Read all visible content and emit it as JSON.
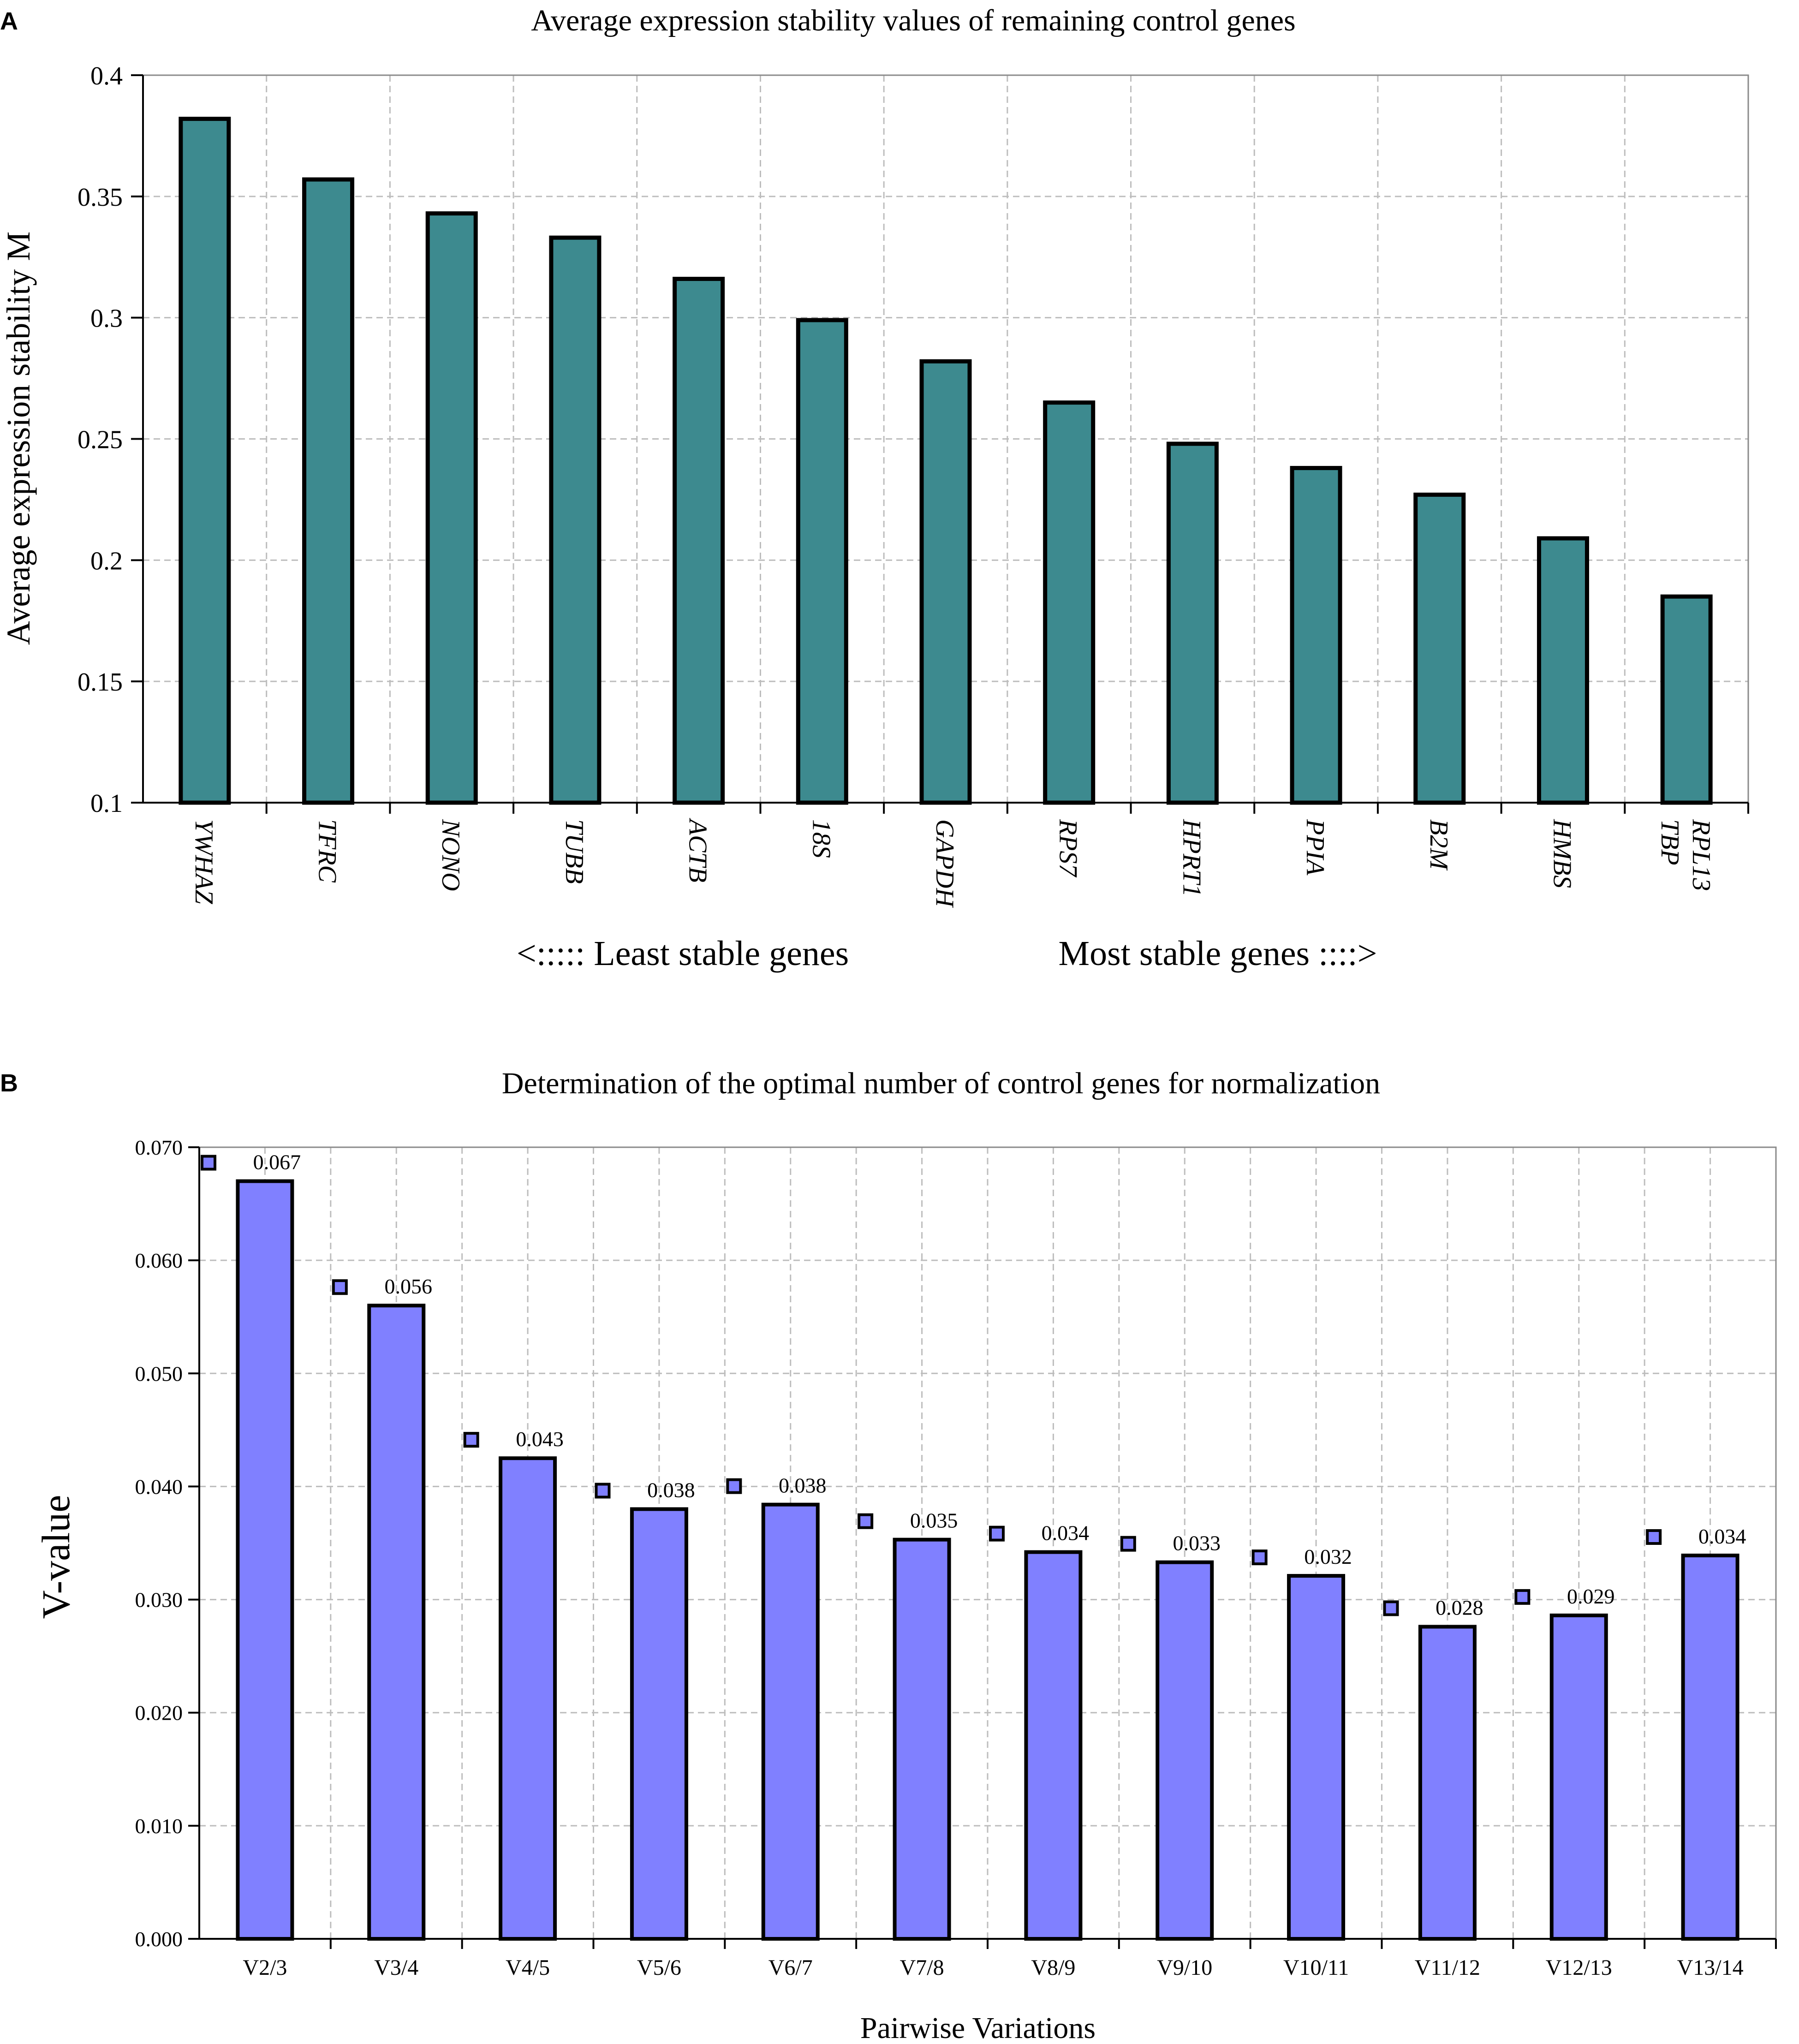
{
  "chart_data": [
    {
      "panel": "A",
      "type": "bar",
      "title": "Average expression stability values of remaining control genes",
      "xlabel": "",
      "ylabel": "Average expression stability M",
      "ylim": [
        0.1,
        0.4
      ],
      "yticks": [
        "0.1",
        "0.15",
        "0.2",
        "0.25",
        "0.3",
        "0.35",
        "0.4"
      ],
      "categories": [
        "YWHAZ",
        "TFRC",
        "NONO",
        "TUBB",
        "ACTB",
        "18S",
        "GAPDH",
        "RPS7",
        "HPRT1",
        "PPIA",
        "B2M",
        "HMBS",
        "TBP RPL13"
      ],
      "category_lines": [
        [
          "YWHAZ"
        ],
        [
          "TFRC"
        ],
        [
          "NONO"
        ],
        [
          "TUBB"
        ],
        [
          "ACTB"
        ],
        [
          "18S"
        ],
        [
          "GAPDH"
        ],
        [
          "RPS7"
        ],
        [
          "HPRT1"
        ],
        [
          "PPIA"
        ],
        [
          "B2M"
        ],
        [
          "HMBS"
        ],
        [
          "TBP",
          "RPL13"
        ]
      ],
      "values": [
        0.382,
        0.357,
        0.343,
        0.333,
        0.316,
        0.299,
        0.282,
        0.265,
        0.248,
        0.238,
        0.227,
        0.209,
        0.185
      ],
      "annotation_left": "<:::::  Least stable genes",
      "annotation_right": "Most stable genes ::::>",
      "bar_color": "#3d8a8f",
      "grid": true
    },
    {
      "panel": "B",
      "type": "bar",
      "title": "Determination of the optimal number of control genes for normalization",
      "xlabel": "Pairwise Variations",
      "ylabel": "V-value",
      "ylim": [
        0,
        0.07
      ],
      "yticks": [
        "0.000",
        "0.010",
        "0.020",
        "0.030",
        "0.040",
        "0.050",
        "0.060",
        "0.070"
      ],
      "categories": [
        "V2/3",
        "V3/4",
        "V4/5",
        "V5/6",
        "V6/7",
        "V7/8",
        "V8/9",
        "V9/10",
        "V10/11",
        "V11/12",
        "V12/13",
        "V13/14"
      ],
      "values": [
        0.067,
        0.056,
        0.0425,
        0.038,
        0.0384,
        0.0353,
        0.0342,
        0.0333,
        0.0321,
        0.0276,
        0.0286,
        0.0339
      ],
      "data_labels": [
        "0.067",
        "0.056",
        "0.043",
        "0.038",
        "0.038",
        "0.035",
        "0.034",
        "0.033",
        "0.032",
        "0.028",
        "0.029",
        "0.034"
      ],
      "bar_color": "#8080ff",
      "grid": true
    }
  ]
}
